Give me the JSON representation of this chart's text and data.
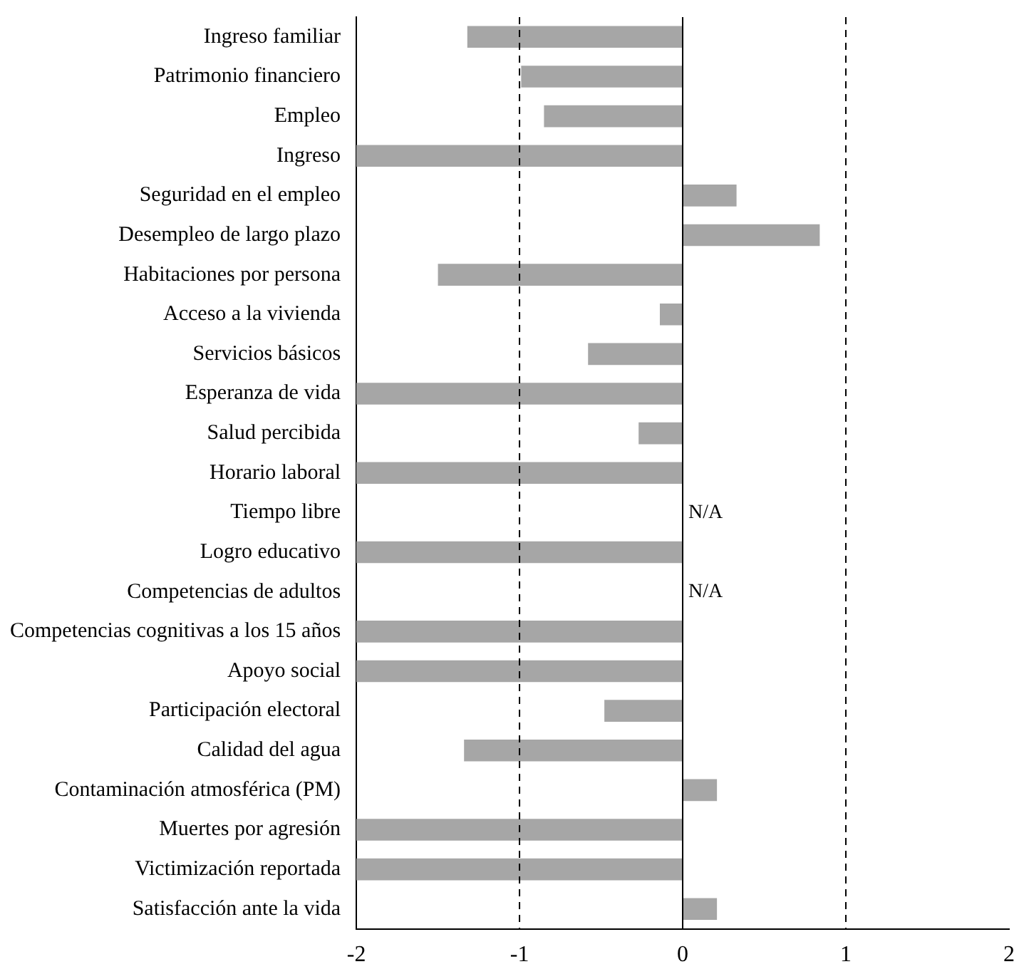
{
  "chart_data": {
    "type": "bar",
    "orientation": "horizontal",
    "categories": [
      "Ingreso familiar",
      "Patrimonio financiero",
      "Empleo",
      "Ingreso",
      "Seguridad en el empleo",
      "Desempleo de largo plazo",
      "Habitaciones por persona",
      "Acceso a la vivienda",
      "Servicios básicos",
      "Esperanza de vida",
      "Salud percibida",
      "Horario laboral",
      "Tiempo libre",
      "Logro educativo",
      "Competencias de adultos",
      "Competencias cognitivas a los 15 años",
      "Apoyo social",
      "Participación electoral",
      "Calidad del agua",
      "Contaminación atmosférica (PM)",
      "Muertes por agresión",
      "Victimización reportada",
      "Satisfacción ante la vida"
    ],
    "values": [
      -1.32,
      -0.99,
      -0.85,
      -2,
      0.33,
      0.84,
      -1.5,
      -0.14,
      -0.58,
      -2,
      -0.27,
      -2,
      null,
      -2,
      null,
      -2,
      -2,
      -0.48,
      -1.34,
      0.21,
      -2,
      -2,
      0.21
    ],
    "color": "#a6a6a6",
    "xlim": [
      -2,
      2
    ],
    "xticks": [
      -2,
      -1,
      0,
      1,
      2
    ],
    "grid": false,
    "legend": false,
    "ref_lines": [
      {
        "axis": "x",
        "value": 0,
        "line_style": "solid",
        "color": "#000000"
      },
      {
        "axis": "x",
        "value": -1,
        "line_style": "dashed",
        "color": "#000000"
      },
      {
        "axis": "x",
        "value": 1,
        "line_style": "dashed",
        "color": "#000000"
      }
    ],
    "annotations": [
      {
        "text": "N/A",
        "x": 0,
        "y": "Tiempo libre"
      },
      {
        "text": "N/A",
        "x": 0,
        "y": "Competencias de adultos"
      }
    ]
  }
}
